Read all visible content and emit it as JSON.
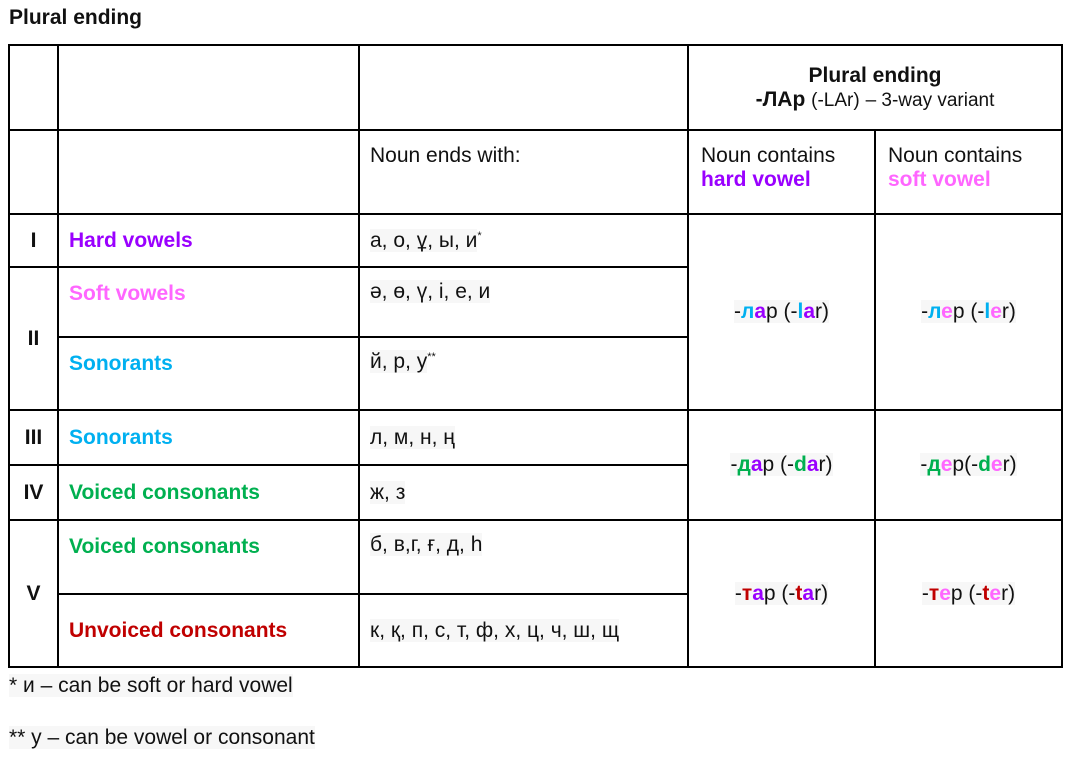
{
  "title": "Plural ending",
  "header": {
    "plural_title": "Plural ending",
    "plural_suffix": "-ЛАр",
    "plural_suffix_latin": "(-LAr)",
    "plural_variant": "– 3-way variant",
    "noun_ends": "Noun ends with:",
    "hard_line1": "Noun contains",
    "hard_line2": "hard vowel",
    "soft_line1": "Noun contains",
    "soft_line2": "soft vowel"
  },
  "colors": {
    "hard_vowel": "#9a00ff",
    "soft_vowel": "#ff66ff",
    "sonorant": "#00b0f0",
    "voiced": "#00b050",
    "unvoiced": "#c00000"
  },
  "groups": [
    "I",
    "II",
    "III",
    "IV",
    "V"
  ],
  "rows": [
    {
      "label": "Hard vowels",
      "letters": "а, о, ұ, ы, и",
      "sup": "*"
    },
    {
      "label": "Soft vowels",
      "letters": "ә, ө, ү, і, е, и",
      "sup": ""
    },
    {
      "label": "Sonorants",
      "letters": "й, р, у",
      "sup": "**"
    },
    {
      "label": "Sonorants",
      "letters": "л, м, н, ң",
      "sup": ""
    },
    {
      "label": "Voiced consonants",
      "letters": "ж, з",
      "sup": ""
    },
    {
      "label": "Voiced consonants",
      "letters": "б, в,г, ғ, д, һ",
      "sup": ""
    },
    {
      "label": "Unvoiced consonants",
      "letters": "к, қ, п, с, т, ф, х, ц, ч, ш, щ",
      "sup": ""
    }
  ],
  "suffixes": [
    {
      "hard": [
        {
          "t": "-",
          "c": ""
        },
        {
          "t": "л",
          "c": "blue"
        },
        {
          "t": "а",
          "c": "purple"
        },
        {
          "t": "р (-",
          "c": ""
        },
        {
          "t": "l",
          "c": "blue"
        },
        {
          "t": "a",
          "c": "purple"
        },
        {
          "t": "r)",
          "c": ""
        }
      ],
      "soft": [
        {
          "t": "-",
          "c": ""
        },
        {
          "t": "л",
          "c": "blue"
        },
        {
          "t": "е",
          "c": "pink"
        },
        {
          "t": "р (-",
          "c": ""
        },
        {
          "t": "l",
          "c": "blue"
        },
        {
          "t": "e",
          "c": "pink"
        },
        {
          "t": "r)",
          "c": ""
        }
      ]
    },
    {
      "hard": [
        {
          "t": "-",
          "c": ""
        },
        {
          "t": "д",
          "c": "green"
        },
        {
          "t": "а",
          "c": "purple"
        },
        {
          "t": "р (-",
          "c": ""
        },
        {
          "t": "d",
          "c": "green"
        },
        {
          "t": "a",
          "c": "purple"
        },
        {
          "t": "r)",
          "c": ""
        }
      ],
      "soft": [
        {
          "t": "-",
          "c": ""
        },
        {
          "t": "д",
          "c": "green"
        },
        {
          "t": "е",
          "c": "pink"
        },
        {
          "t": "р(-",
          "c": ""
        },
        {
          "t": "d",
          "c": "green"
        },
        {
          "t": "e",
          "c": "pink"
        },
        {
          "t": "r)",
          "c": ""
        }
      ]
    },
    {
      "hard": [
        {
          "t": "-",
          "c": ""
        },
        {
          "t": "т",
          "c": "red"
        },
        {
          "t": "а",
          "c": "purple"
        },
        {
          "t": "р (-",
          "c": ""
        },
        {
          "t": "t",
          "c": "red"
        },
        {
          "t": "a",
          "c": "purple"
        },
        {
          "t": "r)",
          "c": ""
        }
      ],
      "soft": [
        {
          "t": "-",
          "c": ""
        },
        {
          "t": "т",
          "c": "red"
        },
        {
          "t": "е",
          "c": "pink"
        },
        {
          "t": "р (-",
          "c": ""
        },
        {
          "t": "t",
          "c": "red"
        },
        {
          "t": "e",
          "c": "pink"
        },
        {
          "t": "r)",
          "c": ""
        }
      ]
    }
  ],
  "footnotes": [
    "* и – can be soft or hard vowel",
    "** у – can be vowel or consonant"
  ]
}
